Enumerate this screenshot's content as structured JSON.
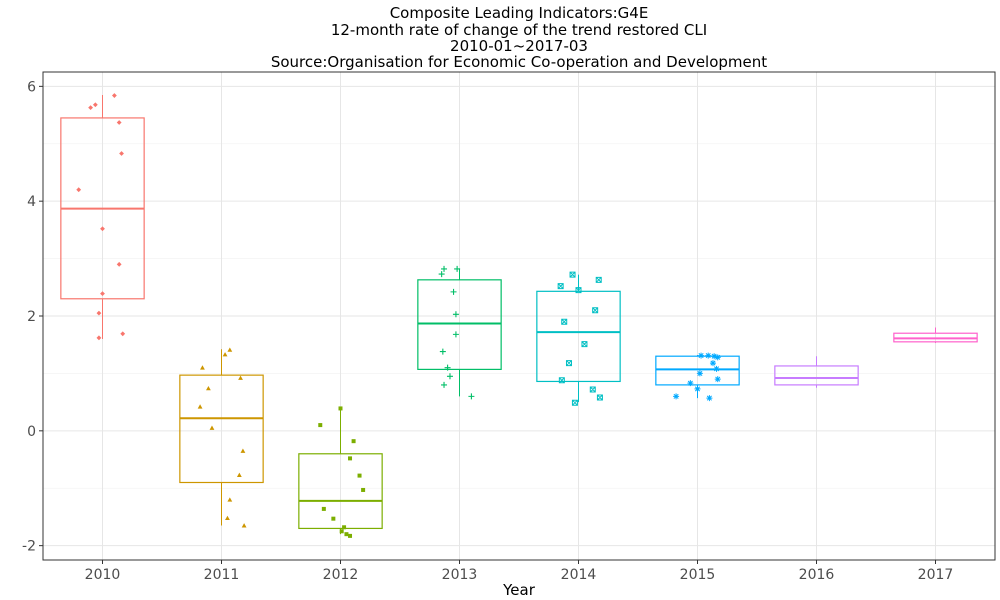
{
  "chart_data": {
    "type": "boxplot",
    "title_lines": [
      "Composite Leading Indicators:G4E",
      "12-month rate of change of the trend restored CLI",
      "2010-01~2017-03",
      "Source:Organisation for Economic Co-operation and Development"
    ],
    "xlabel": "Year",
    "ylabel": "",
    "ylim": [
      -2.25,
      6.25
    ],
    "y_ticks": [
      -2,
      0,
      2,
      4,
      6
    ],
    "y_tick_labels": [
      "-2",
      "0",
      "2",
      "4",
      "6"
    ],
    "grid": true,
    "legend": "none",
    "categories": [
      "2010",
      "2011",
      "2012",
      "2013",
      "2014",
      "2015",
      "2016",
      "2017"
    ],
    "colors": [
      "#F8766D",
      "#CD9600",
      "#7CAE00",
      "#00BE67",
      "#00BFC4",
      "#00A9FF",
      "#C77CFF",
      "#FF61CC"
    ],
    "markers": [
      "diamond",
      "triangle",
      "square",
      "plus",
      "boxcross",
      "asterisk",
      "diamond",
      "triangle"
    ],
    "boxes": [
      {
        "q1": 2.3,
        "median": 3.87,
        "q3": 5.45,
        "whisker_low": 1.6,
        "whisker_high": 5.85
      },
      {
        "q1": -0.9,
        "median": 0.22,
        "q3": 0.97,
        "whisker_low": -1.65,
        "whisker_high": 1.42
      },
      {
        "q1": -1.7,
        "median": -1.22,
        "q3": -0.4,
        "whisker_low": -1.8,
        "whisker_high": 0.4
      },
      {
        "q1": 1.07,
        "median": 1.87,
        "q3": 2.63,
        "whisker_low": 0.6,
        "whisker_high": 2.83
      },
      {
        "q1": 0.86,
        "median": 1.72,
        "q3": 2.43,
        "whisker_low": 0.5,
        "whisker_high": 2.72
      },
      {
        "q1": 0.8,
        "median": 1.07,
        "q3": 1.3,
        "whisker_low": 0.57,
        "whisker_high": 1.32
      },
      {
        "q1": 0.8,
        "median": 0.92,
        "q3": 1.13,
        "whisker_low": 0.75,
        "whisker_high": 1.3
      },
      {
        "q1": 1.55,
        "median": 1.61,
        "q3": 1.7,
        "whisker_low": 1.53,
        "whisker_high": 1.8
      }
    ],
    "points": [
      [
        [
          -0.1,
          5.63
        ],
        [
          -0.06,
          5.68
        ],
        [
          0.1,
          5.84
        ],
        [
          0.14,
          5.37
        ],
        [
          0.16,
          4.83
        ],
        [
          -0.2,
          4.2
        ],
        [
          0.0,
          3.52
        ],
        [
          0.14,
          2.9
        ],
        [
          0.0,
          2.39
        ],
        [
          -0.03,
          2.05
        ],
        [
          -0.03,
          1.62
        ],
        [
          0.17,
          1.69
        ]
      ],
      [
        [
          0.07,
          1.41
        ],
        [
          0.03,
          1.33
        ],
        [
          -0.16,
          1.1
        ],
        [
          0.16,
          0.92
        ],
        [
          -0.11,
          0.74
        ],
        [
          -0.18,
          0.42
        ],
        [
          -0.08,
          0.05
        ],
        [
          0.18,
          -0.35
        ],
        [
          0.15,
          -0.77
        ],
        [
          0.07,
          -1.2
        ],
        [
          0.05,
          -1.52
        ],
        [
          0.19,
          -1.65
        ]
      ],
      [
        [
          0.0,
          0.39
        ],
        [
          -0.17,
          0.1
        ],
        [
          0.11,
          -0.18
        ],
        [
          0.08,
          -0.48
        ],
        [
          0.16,
          -0.78
        ],
        [
          0.19,
          -1.03
        ],
        [
          -0.14,
          -1.36
        ],
        [
          -0.06,
          -1.53
        ],
        [
          0.03,
          -1.68
        ],
        [
          0.01,
          -1.75
        ],
        [
          0.05,
          -1.8
        ],
        [
          0.08,
          -1.83
        ]
      ],
      [
        [
          -0.13,
          2.82
        ],
        [
          -0.02,
          2.82
        ],
        [
          -0.15,
          2.73
        ],
        [
          -0.05,
          2.42
        ],
        [
          -0.03,
          2.03
        ],
        [
          -0.03,
          1.68
        ],
        [
          -0.14,
          1.38
        ],
        [
          -0.1,
          1.1
        ],
        [
          -0.08,
          0.95
        ],
        [
          -0.13,
          0.8
        ],
        [
          0.1,
          0.6
        ]
      ],
      [
        [
          -0.05,
          2.72
        ],
        [
          0.17,
          2.63
        ],
        [
          -0.15,
          2.52
        ],
        [
          0.0,
          2.45
        ],
        [
          0.14,
          2.1
        ],
        [
          -0.12,
          1.9
        ],
        [
          0.05,
          1.51
        ],
        [
          -0.08,
          1.18
        ],
        [
          -0.14,
          0.88
        ],
        [
          0.12,
          0.72
        ],
        [
          -0.03,
          0.49
        ],
        [
          0.18,
          0.58
        ]
      ],
      [
        [
          0.09,
          1.31
        ],
        [
          0.14,
          1.3
        ],
        [
          0.03,
          1.31
        ],
        [
          0.17,
          1.28
        ],
        [
          0.13,
          1.18
        ],
        [
          0.16,
          1.08
        ],
        [
          0.02,
          1.0
        ],
        [
          0.17,
          0.9
        ],
        [
          -0.06,
          0.83
        ],
        [
          0.0,
          0.73
        ],
        [
          -0.18,
          0.6
        ],
        [
          0.1,
          0.57
        ]
      ],
      [],
      []
    ]
  }
}
